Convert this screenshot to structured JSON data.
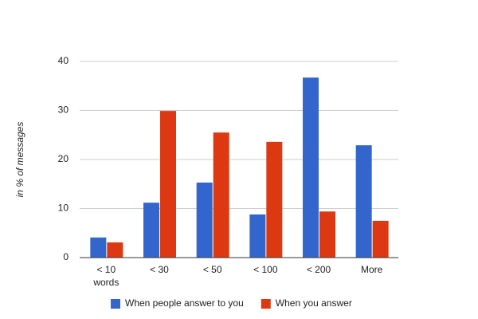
{
  "chart_data": {
    "type": "bar",
    "y_label": "in % of messages",
    "categories": [
      "< 10 words",
      "< 30",
      "< 50",
      "< 100",
      "< 200",
      "More"
    ],
    "series": [
      {
        "name": "When people answer to you",
        "color": "#3366cc",
        "values": [
          4.1,
          11.2,
          15.3,
          8.8,
          36.7,
          22.9
        ]
      },
      {
        "name": "When you answer",
        "color": "#dc3912",
        "values": [
          3.1,
          29.9,
          25.5,
          23.6,
          9.4,
          7.5
        ]
      }
    ],
    "ylim": [
      0,
      40
    ],
    "yticks": [
      0,
      10,
      20,
      30,
      40
    ],
    "grid": true,
    "legend": "bottom"
  }
}
